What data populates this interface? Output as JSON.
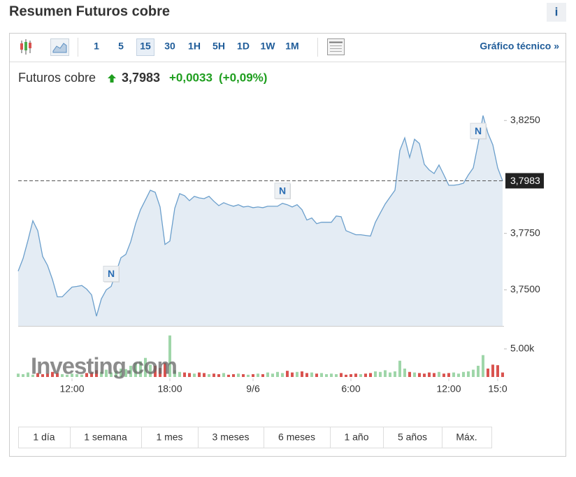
{
  "header": {
    "title": "Resumen Futuros cobre",
    "info": "i"
  },
  "toolbar": {
    "intervals": [
      "1",
      "5",
      "15",
      "30",
      "1H",
      "5H",
      "1D",
      "1W",
      "1M"
    ],
    "selected": 2,
    "technical_link": "Gráfico técnico »"
  },
  "quote": {
    "name": "Futuros cobre",
    "price": "3,7983",
    "change": "+0,0033",
    "change_pct": "(+0,09%)"
  },
  "chart_data": {
    "type": "area",
    "categories": [
      null,
      null,
      null,
      null,
      null,
      null,
      null,
      null,
      null,
      null,
      null,
      "12:00",
      null,
      null,
      null,
      null,
      null,
      null,
      null,
      null,
      null,
      null,
      null,
      null,
      null,
      null,
      null,
      null,
      null,
      null,
      null,
      "18:00",
      null,
      null,
      null,
      null,
      null,
      null,
      null,
      null,
      null,
      null,
      null,
      null,
      null,
      null,
      null,
      null,
      "9/6",
      null,
      null,
      null,
      null,
      null,
      null,
      null,
      null,
      null,
      null,
      null,
      null,
      null,
      null,
      null,
      null,
      null,
      null,
      null,
      "6:00",
      null,
      null,
      null,
      null,
      null,
      null,
      null,
      null,
      null,
      null,
      null,
      null,
      null,
      null,
      null,
      null,
      null,
      null,
      null,
      "12:00",
      null,
      null,
      null,
      null,
      null,
      null,
      null,
      null,
      null,
      "15:0",
      null
    ],
    "values": [
      3.7583,
      3.7639,
      3.7719,
      3.7806,
      3.7762,
      3.7648,
      3.7608,
      3.7546,
      3.7469,
      3.7469,
      3.7491,
      3.7512,
      3.7515,
      3.7519,
      3.7503,
      3.7478,
      3.7383,
      3.746,
      3.75,
      3.7515,
      3.7577,
      3.7642,
      3.7657,
      3.7713,
      3.7793,
      3.7855,
      3.7898,
      3.7941,
      3.7932,
      3.7867,
      3.7701,
      3.7716,
      3.7861,
      3.7926,
      3.7917,
      3.7895,
      3.7914,
      3.7907,
      3.7904,
      3.7914,
      3.7892,
      3.7873,
      3.7886,
      3.7877,
      3.787,
      3.7877,
      3.7867,
      3.787,
      3.7864,
      3.7867,
      3.7864,
      3.787,
      3.787,
      3.787,
      3.7883,
      3.7877,
      3.7867,
      3.7877,
      3.7855,
      3.7809,
      3.7818,
      3.7793,
      3.7799,
      3.7799,
      3.7799,
      3.7827,
      3.7824,
      3.7762,
      3.7753,
      3.7744,
      3.7744,
      3.7741,
      3.7738,
      3.7799,
      3.784,
      3.788,
      3.7911,
      3.7941,
      3.8117,
      3.8173,
      3.8086,
      3.8167,
      3.8148,
      3.8056,
      3.8031,
      3.8015,
      3.8053,
      3.8009,
      3.7963,
      3.7963,
      3.7966,
      3.7972,
      3.8009,
      3.804,
      3.8148,
      3.8272,
      3.8194,
      3.8142,
      3.804,
      3.7983
    ],
    "color": "#6b9fcc",
    "fill_color": "#e4ecf4",
    "ylim": [
      3.734,
      3.835
    ],
    "yticks": [
      {
        "value": 3.75,
        "label": "3,7500"
      },
      {
        "value": 3.775,
        "label": "3,7750"
      },
      {
        "value": 3.825,
        "label": "3,8250"
      }
    ],
    "last_price": {
      "value": 3.7983,
      "label": "3,7983"
    },
    "annotations": [
      {
        "text": "N",
        "index": 19
      },
      {
        "text": "N",
        "index": 54
      },
      {
        "text": "N",
        "index": 94
      }
    ],
    "volume": {
      "values": [
        600,
        500,
        800,
        400,
        700,
        500,
        600,
        900,
        700,
        500,
        400,
        600,
        500,
        400,
        700,
        800,
        1200,
        900,
        1300,
        800,
        1100,
        1500,
        1400,
        2000,
        2500,
        2800,
        3400,
        2200,
        2000,
        1600,
        2500,
        7400,
        1200,
        900,
        800,
        700,
        600,
        800,
        700,
        500,
        600,
        500,
        700,
        400,
        500,
        600,
        500,
        400,
        500,
        600,
        500,
        800,
        600,
        900,
        700,
        1100,
        800,
        900,
        1000,
        700,
        800,
        600,
        700,
        500,
        600,
        500,
        700,
        400,
        500,
        600,
        500,
        600,
        700,
        1000,
        900,
        1200,
        800,
        1000,
        2900,
        1500,
        900,
        800,
        700,
        600,
        800,
        700,
        900,
        600,
        700,
        800,
        600,
        900,
        1000,
        1300,
        2000,
        3900,
        1500,
        2200,
        2100,
        800
      ],
      "ylim": [
        0,
        8600
      ],
      "yticks": [
        {
          "value": 5000,
          "label": "5.00k"
        }
      ],
      "up_color": "#9fd6a9",
      "down_color": "#d9534f"
    },
    "watermark": "Investing.com"
  },
  "ranges": [
    "1 día",
    "1 semana",
    "1 mes",
    "3 meses",
    "6 meses",
    "1 año",
    "5 años",
    "Máx."
  ]
}
